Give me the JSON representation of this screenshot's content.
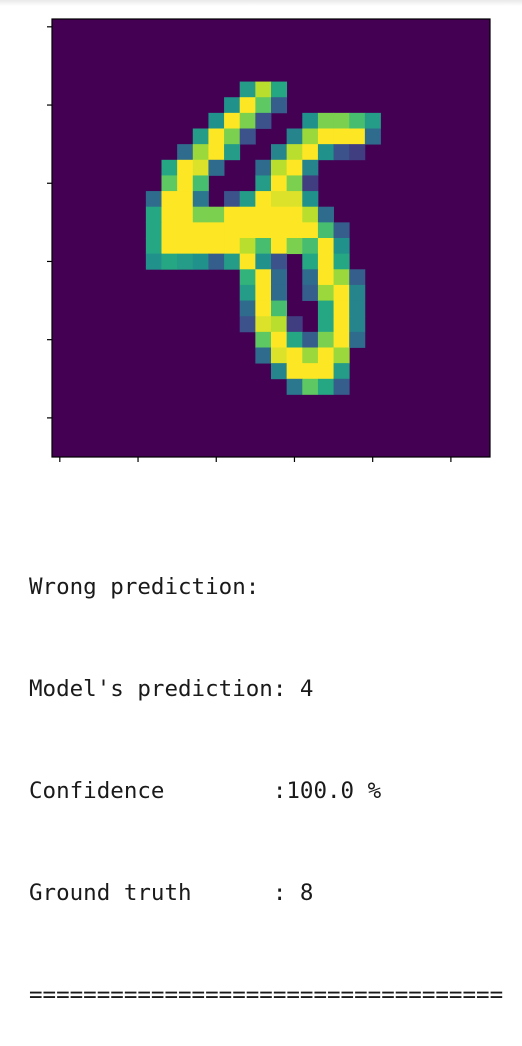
{
  "image": {
    "type": "heatmap",
    "colormap": "viridis",
    "background_color": "#440154",
    "axis_color": "#000000",
    "pixel_grid": {
      "rows": 28,
      "cols": 28,
      "nonzero_pixels": [
        [
          4,
          12,
          0.55
        ],
        [
          4,
          13,
          0.9
        ],
        [
          4,
          14,
          0.6
        ],
        [
          5,
          11,
          0.5
        ],
        [
          5,
          12,
          1.0
        ],
        [
          5,
          13,
          0.75
        ],
        [
          5,
          14,
          0.3
        ],
        [
          6,
          10,
          0.5
        ],
        [
          6,
          11,
          1.0
        ],
        [
          6,
          12,
          0.8
        ],
        [
          6,
          13,
          0.25
        ],
        [
          6,
          16,
          0.5
        ],
        [
          6,
          17,
          0.8
        ],
        [
          6,
          18,
          0.8
        ],
        [
          6,
          19,
          0.7
        ],
        [
          6,
          20,
          0.55
        ],
        [
          7,
          9,
          0.55
        ],
        [
          7,
          10,
          1.0
        ],
        [
          7,
          11,
          0.8
        ],
        [
          7,
          12,
          0.25
        ],
        [
          7,
          15,
          0.45
        ],
        [
          7,
          16,
          0.85
        ],
        [
          7,
          17,
          1.0
        ],
        [
          7,
          18,
          1.0
        ],
        [
          7,
          19,
          1.0
        ],
        [
          7,
          20,
          0.35
        ],
        [
          8,
          8,
          0.35
        ],
        [
          8,
          9,
          0.85
        ],
        [
          8,
          10,
          1.0
        ],
        [
          8,
          11,
          0.55
        ],
        [
          8,
          14,
          0.45
        ],
        [
          8,
          15,
          0.9
        ],
        [
          8,
          16,
          1.0
        ],
        [
          8,
          17,
          0.5
        ],
        [
          8,
          18,
          0.25
        ],
        [
          8,
          19,
          0.2
        ],
        [
          9,
          7,
          0.6
        ],
        [
          9,
          8,
          1.0
        ],
        [
          9,
          9,
          0.95
        ],
        [
          9,
          10,
          0.35
        ],
        [
          9,
          13,
          0.35
        ],
        [
          9,
          14,
          0.9
        ],
        [
          9,
          15,
          1.0
        ],
        [
          9,
          16,
          0.45
        ],
        [
          10,
          7,
          0.75
        ],
        [
          10,
          8,
          1.0
        ],
        [
          10,
          9,
          0.7
        ],
        [
          10,
          13,
          0.55
        ],
        [
          10,
          14,
          1.0
        ],
        [
          10,
          15,
          0.8
        ],
        [
          10,
          16,
          0.2
        ],
        [
          11,
          6,
          0.35
        ],
        [
          11,
          7,
          1.0
        ],
        [
          11,
          8,
          1.0
        ],
        [
          11,
          9,
          0.4
        ],
        [
          11,
          11,
          0.25
        ],
        [
          11,
          12,
          0.55
        ],
        [
          11,
          13,
          1.0
        ],
        [
          11,
          14,
          0.95
        ],
        [
          11,
          15,
          0.95
        ],
        [
          11,
          16,
          0.5
        ],
        [
          12,
          6,
          0.6
        ],
        [
          12,
          7,
          1.0
        ],
        [
          12,
          8,
          1.0
        ],
        [
          12,
          9,
          0.8
        ],
        [
          12,
          10,
          0.8
        ],
        [
          12,
          11,
          1.0
        ],
        [
          12,
          12,
          1.0
        ],
        [
          12,
          13,
          1.0
        ],
        [
          12,
          14,
          1.0
        ],
        [
          12,
          15,
          1.0
        ],
        [
          12,
          16,
          0.9
        ],
        [
          12,
          17,
          0.35
        ],
        [
          13,
          6,
          0.6
        ],
        [
          13,
          7,
          1.0
        ],
        [
          13,
          8,
          1.0
        ],
        [
          13,
          9,
          1.0
        ],
        [
          13,
          10,
          1.0
        ],
        [
          13,
          11,
          1.0
        ],
        [
          13,
          12,
          1.0
        ],
        [
          13,
          13,
          1.0
        ],
        [
          13,
          14,
          1.0
        ],
        [
          13,
          15,
          1.0
        ],
        [
          13,
          16,
          1.0
        ],
        [
          13,
          17,
          0.7
        ],
        [
          13,
          18,
          0.3
        ],
        [
          14,
          6,
          0.6
        ],
        [
          14,
          7,
          1.0
        ],
        [
          14,
          8,
          1.0
        ],
        [
          14,
          9,
          1.0
        ],
        [
          14,
          10,
          1.0
        ],
        [
          14,
          11,
          1.0
        ],
        [
          14,
          12,
          0.9
        ],
        [
          14,
          13,
          0.7
        ],
        [
          14,
          14,
          1.0
        ],
        [
          14,
          15,
          0.8
        ],
        [
          14,
          16,
          0.7
        ],
        [
          14,
          17,
          1.0
        ],
        [
          14,
          18,
          0.5
        ],
        [
          15,
          6,
          0.5
        ],
        [
          15,
          7,
          0.6
        ],
        [
          15,
          8,
          0.55
        ],
        [
          15,
          9,
          0.5
        ],
        [
          15,
          10,
          0.3
        ],
        [
          15,
          11,
          0.55
        ],
        [
          15,
          12,
          1.0
        ],
        [
          15,
          13,
          0.5
        ],
        [
          15,
          14,
          0.25
        ],
        [
          15,
          16,
          0.6
        ],
        [
          15,
          17,
          1.0
        ],
        [
          15,
          18,
          0.6
        ],
        [
          16,
          12,
          0.65
        ],
        [
          16,
          13,
          1.0
        ],
        [
          16,
          14,
          0.35
        ],
        [
          16,
          16,
          0.35
        ],
        [
          16,
          17,
          1.0
        ],
        [
          16,
          18,
          0.85
        ],
        [
          16,
          19,
          0.3
        ],
        [
          17,
          12,
          0.55
        ],
        [
          17,
          13,
          1.0
        ],
        [
          17,
          14,
          0.35
        ],
        [
          17,
          16,
          0.3
        ],
        [
          17,
          17,
          0.85
        ],
        [
          17,
          18,
          1.0
        ],
        [
          17,
          19,
          0.45
        ],
        [
          18,
          12,
          0.35
        ],
        [
          18,
          13,
          1.0
        ],
        [
          18,
          14,
          0.7
        ],
        [
          18,
          17,
          0.6
        ],
        [
          18,
          18,
          1.0
        ],
        [
          18,
          19,
          0.45
        ],
        [
          19,
          12,
          0.25
        ],
        [
          19,
          13,
          0.95
        ],
        [
          19,
          14,
          0.9
        ],
        [
          19,
          15,
          0.2
        ],
        [
          19,
          17,
          0.6
        ],
        [
          19,
          18,
          1.0
        ],
        [
          19,
          19,
          0.45
        ],
        [
          20,
          13,
          0.75
        ],
        [
          20,
          14,
          1.0
        ],
        [
          20,
          15,
          0.6
        ],
        [
          20,
          16,
          0.3
        ],
        [
          20,
          17,
          0.8
        ],
        [
          20,
          18,
          1.0
        ],
        [
          20,
          19,
          0.35
        ],
        [
          21,
          13,
          0.35
        ],
        [
          21,
          14,
          0.95
        ],
        [
          21,
          15,
          1.0
        ],
        [
          21,
          16,
          0.85
        ],
        [
          21,
          17,
          1.0
        ],
        [
          21,
          18,
          0.85
        ],
        [
          22,
          14,
          0.45
        ],
        [
          22,
          15,
          1.0
        ],
        [
          22,
          16,
          1.0
        ],
        [
          22,
          17,
          1.0
        ],
        [
          22,
          18,
          0.55
        ],
        [
          23,
          15,
          0.4
        ],
        [
          23,
          16,
          0.75
        ],
        [
          23,
          17,
          0.6
        ],
        [
          23,
          18,
          0.3
        ]
      ]
    }
  },
  "output": {
    "line1": "Wrong prediction:",
    "line2": "Model's prediction: 4",
    "line3": "Confidence        :100.0 %",
    "line4": "Ground truth      : 8",
    "separator": "==================================="
  }
}
